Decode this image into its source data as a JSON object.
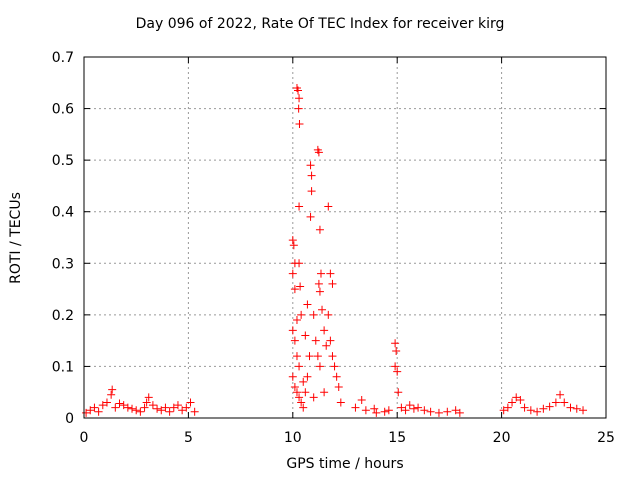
{
  "chart_data": {
    "type": "scatter",
    "title": "Day 096 of 2022, Rate Of TEC Index for receiver kirg",
    "xlabel": "GPS time / hours",
    "ylabel": "ROTI / TECUs",
    "xlim": [
      0,
      25
    ],
    "ylim": [
      0,
      0.7
    ],
    "xticks": [
      0,
      5,
      10,
      15,
      20,
      25
    ],
    "yticks": [
      0,
      0.1,
      0.2,
      0.3,
      0.4,
      0.5,
      0.6,
      0.7
    ],
    "grid": true,
    "marker": "+",
    "color": "#ff0000",
    "series": [
      {
        "name": "ROTI",
        "points": [
          [
            0.1,
            0.01
          ],
          [
            0.3,
            0.015
          ],
          [
            0.5,
            0.02
          ],
          [
            0.7,
            0.012
          ],
          [
            0.9,
            0.025
          ],
          [
            1.1,
            0.03
          ],
          [
            1.3,
            0.045
          ],
          [
            1.35,
            0.055
          ],
          [
            1.5,
            0.02
          ],
          [
            1.7,
            0.028
          ],
          [
            1.9,
            0.025
          ],
          [
            2.1,
            0.02
          ],
          [
            2.3,
            0.018
          ],
          [
            2.5,
            0.015
          ],
          [
            2.7,
            0.012
          ],
          [
            2.9,
            0.02
          ],
          [
            3.0,
            0.03
          ],
          [
            3.1,
            0.04
          ],
          [
            3.3,
            0.025
          ],
          [
            3.5,
            0.018
          ],
          [
            3.7,
            0.015
          ],
          [
            3.9,
            0.02
          ],
          [
            4.1,
            0.012
          ],
          [
            4.3,
            0.02
          ],
          [
            4.5,
            0.025
          ],
          [
            4.7,
            0.015
          ],
          [
            4.9,
            0.02
          ],
          [
            5.1,
            0.03
          ],
          [
            5.3,
            0.012
          ],
          [
            10.0,
            0.345
          ],
          [
            10.05,
            0.335
          ],
          [
            10.1,
            0.3
          ],
          [
            10.0,
            0.28
          ],
          [
            10.1,
            0.25
          ],
          [
            10.2,
            0.64
          ],
          [
            10.25,
            0.635
          ],
          [
            10.3,
            0.62
          ],
          [
            10.28,
            0.6
          ],
          [
            10.32,
            0.57
          ],
          [
            10.3,
            0.41
          ],
          [
            10.3,
            0.3
          ],
          [
            10.35,
            0.255
          ],
          [
            10.4,
            0.2
          ],
          [
            10.2,
            0.19
          ],
          [
            10.0,
            0.17
          ],
          [
            10.1,
            0.15
          ],
          [
            10.2,
            0.12
          ],
          [
            10.3,
            0.1
          ],
          [
            10.0,
            0.08
          ],
          [
            10.1,
            0.06
          ],
          [
            10.2,
            0.05
          ],
          [
            10.3,
            0.04
          ],
          [
            10.4,
            0.03
          ],
          [
            10.5,
            0.02
          ],
          [
            10.6,
            0.05
          ],
          [
            10.7,
            0.08
          ],
          [
            10.8,
            0.12
          ],
          [
            10.6,
            0.16
          ],
          [
            10.7,
            0.22
          ],
          [
            10.85,
            0.49
          ],
          [
            10.9,
            0.44
          ],
          [
            10.85,
            0.39
          ],
          [
            10.9,
            0.47
          ],
          [
            11.0,
            0.2
          ],
          [
            11.1,
            0.15
          ],
          [
            11.2,
            0.12
          ],
          [
            11.3,
            0.1
          ],
          [
            11.2,
            0.52
          ],
          [
            11.25,
            0.515
          ],
          [
            11.3,
            0.365
          ],
          [
            11.35,
            0.28
          ],
          [
            11.25,
            0.26
          ],
          [
            11.3,
            0.245
          ],
          [
            11.4,
            0.21
          ],
          [
            11.5,
            0.17
          ],
          [
            11.6,
            0.14
          ],
          [
            11.7,
            0.41
          ],
          [
            11.8,
            0.28
          ],
          [
            11.9,
            0.26
          ],
          [
            11.7,
            0.2
          ],
          [
            11.8,
            0.15
          ],
          [
            11.9,
            0.12
          ],
          [
            12.0,
            0.1
          ],
          [
            12.1,
            0.08
          ],
          [
            12.2,
            0.06
          ],
          [
            11.5,
            0.05
          ],
          [
            11.0,
            0.04
          ],
          [
            10.5,
            0.07
          ],
          [
            12.3,
            0.03
          ],
          [
            13.0,
            0.02
          ],
          [
            13.3,
            0.035
          ],
          [
            13.5,
            0.015
          ],
          [
            13.9,
            0.018
          ],
          [
            14.0,
            0.01
          ],
          [
            14.4,
            0.012
          ],
          [
            14.6,
            0.015
          ],
          [
            14.9,
            0.145
          ],
          [
            14.95,
            0.13
          ],
          [
            14.9,
            0.1
          ],
          [
            15.0,
            0.09
          ],
          [
            15.05,
            0.05
          ],
          [
            15.2,
            0.02
          ],
          [
            15.4,
            0.015
          ],
          [
            15.6,
            0.025
          ],
          [
            15.8,
            0.018
          ],
          [
            16.0,
            0.02
          ],
          [
            16.3,
            0.015
          ],
          [
            16.6,
            0.012
          ],
          [
            17.0,
            0.01
          ],
          [
            17.4,
            0.012
          ],
          [
            17.8,
            0.015
          ],
          [
            18.0,
            0.01
          ],
          [
            20.1,
            0.015
          ],
          [
            20.3,
            0.02
          ],
          [
            20.5,
            0.03
          ],
          [
            20.7,
            0.04
          ],
          [
            20.9,
            0.035
          ],
          [
            21.1,
            0.02
          ],
          [
            21.4,
            0.015
          ],
          [
            21.7,
            0.012
          ],
          [
            22.0,
            0.018
          ],
          [
            22.3,
            0.022
          ],
          [
            22.6,
            0.03
          ],
          [
            22.8,
            0.045
          ],
          [
            23.0,
            0.03
          ],
          [
            23.3,
            0.02
          ],
          [
            23.6,
            0.018
          ],
          [
            23.9,
            0.015
          ]
        ]
      }
    ]
  }
}
